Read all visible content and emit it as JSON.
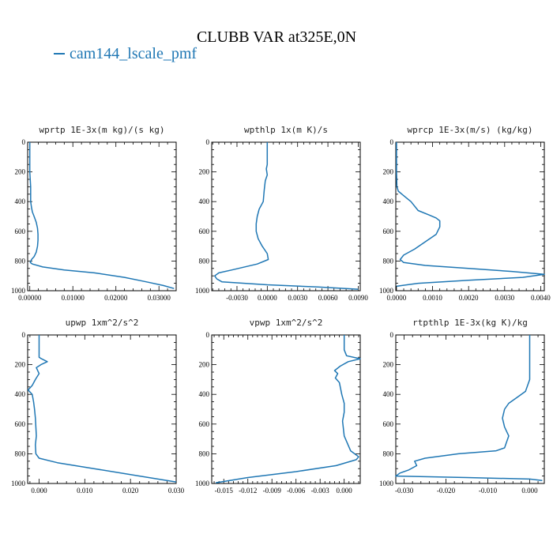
{
  "figure": {
    "title": "CLUBB VAR at325E,0N",
    "legend": {
      "label": "cam144_lscale_pmf",
      "color": "#1f77b4"
    }
  },
  "chart_data": [
    {
      "type": "line",
      "title": "wprtp  1E-3x(m kg)/(s kg)",
      "xlim": [
        -0.0005,
        0.034
      ],
      "ylim": [
        1000,
        0
      ],
      "xticks": [
        0,
        0.01,
        0.02,
        0.03
      ],
      "xtick_labels": [
        "0.00000",
        "0.01000",
        "0.02000",
        "0.03000"
      ],
      "yticks": [
        0,
        200,
        400,
        600,
        800,
        1000
      ],
      "series": [
        {
          "x": [
            0.0,
            0.0,
            0.0002,
            0.0002,
            0.0004,
            0.0006,
            0.001,
            0.0015,
            0.0018,
            0.0019,
            0.0019,
            0.0018,
            0.0015,
            0.001,
            0.0004,
            0.0001,
            0.0006,
            0.003,
            0.008,
            0.015,
            0.022,
            0.027,
            0.031,
            0.0335
          ],
          "y": [
            0,
            200,
            300,
            400,
            440,
            470,
            500,
            540,
            580,
            620,
            660,
            700,
            740,
            770,
            790,
            810,
            820,
            840,
            860,
            880,
            910,
            940,
            965,
            985
          ]
        }
      ]
    },
    {
      "type": "line",
      "title": "wpthlp  1x(m K)/s",
      "xlim": [
        -0.0055,
        0.0092
      ],
      "ylim": [
        1000,
        0
      ],
      "xticks": [
        -0.003,
        0,
        0.003,
        0.006,
        0.009
      ],
      "xtick_labels": [
        "-0.0030",
        "0.0000",
        "0.0030",
        "0.0060",
        "0.0090"
      ],
      "yticks": [
        0,
        200,
        400,
        600,
        800,
        1000
      ],
      "series": [
        {
          "x": [
            0.0,
            0.0,
            0.0,
            -0.0001,
            0.0,
            -0.0002,
            -0.0003,
            -0.0004,
            -0.0008,
            -0.001,
            -0.0011,
            -0.0011,
            -0.0009,
            -0.0005,
            0.0,
            0.0001,
            -0.001,
            -0.0035,
            -0.0048,
            -0.0052,
            -0.005,
            -0.0045,
            0.0,
            0.005,
            0.009
          ],
          "y": [
            0,
            100,
            150,
            180,
            220,
            260,
            320,
            400,
            450,
            500,
            550,
            600,
            650,
            700,
            750,
            790,
            820,
            860,
            880,
            900,
            920,
            940,
            960,
            975,
            990
          ]
        }
      ]
    },
    {
      "type": "line",
      "title": "wprcp  1E-3x(m/s) (kg/kg)",
      "xlim": [
        -2e-05,
        0.0041
      ],
      "ylim": [
        1000,
        0
      ],
      "xticks": [
        0,
        0.001,
        0.002,
        0.003,
        0.004
      ],
      "xtick_labels": [
        "0.0000",
        "0.0010",
        "0.0020",
        "0.0030",
        "0.0040"
      ],
      "yticks": [
        0,
        200,
        400,
        600,
        800,
        1000
      ],
      "series": [
        {
          "x": [
            0.0,
            0.0,
            1e-05,
            5e-05,
            0.0002,
            0.0004,
            0.0006,
            0.0009,
            0.0011,
            0.0012,
            0.0012,
            0.0011,
            0.0008,
            0.0005,
            0.0002,
            0.0001,
            0.0002,
            0.0008,
            0.002,
            0.0032,
            0.0041,
            0.0035,
            0.002,
            0.0006,
            0.0
          ],
          "y": [
            0,
            200,
            300,
            330,
            360,
            400,
            460,
            490,
            510,
            530,
            570,
            620,
            670,
            720,
            760,
            790,
            810,
            830,
            850,
            870,
            890,
            910,
            930,
            950,
            970
          ]
        }
      ]
    },
    {
      "type": "line",
      "title": "upwp  1xm^2/s^2",
      "xlim": [
        -0.0025,
        0.03
      ],
      "ylim": [
        1000,
        0
      ],
      "xticks": [
        0,
        0.01,
        0.02,
        0.03
      ],
      "xtick_labels": [
        "0.000",
        "0.010",
        "0.020",
        "0.030"
      ],
      "yticks": [
        0,
        200,
        400,
        600,
        800,
        1000
      ],
      "series": [
        {
          "x": [
            0.0,
            0.0,
            0.0,
            0.0005,
            0.0018,
            0.0004,
            -0.0006,
            0.0,
            -0.0008,
            -0.0015,
            -0.0024,
            -0.0015,
            -0.0012,
            -0.001,
            -0.0008,
            -0.0007,
            -0.0006,
            -0.0008,
            -0.0007,
            0.0,
            0.004,
            0.012,
            0.022,
            0.03
          ],
          "y": [
            0,
            100,
            150,
            160,
            180,
            200,
            220,
            260,
            300,
            340,
            370,
            400,
            450,
            500,
            560,
            620,
            680,
            740,
            800,
            830,
            860,
            900,
            950,
            990
          ]
        }
      ]
    },
    {
      "type": "line",
      "title": "vpwp  1xm^2/s^2",
      "xlim": [
        -0.0165,
        0.002
      ],
      "ylim": [
        1000,
        0
      ],
      "xticks": [
        -0.015,
        -0.012,
        -0.009,
        -0.006,
        -0.003,
        0
      ],
      "xtick_labels": [
        "-0.015",
        "-0.012",
        "-0.009",
        "-0.006",
        "-0.003",
        "0.000"
      ],
      "yticks": [
        0,
        200,
        400,
        600,
        800,
        1000
      ],
      "series": [
        {
          "x": [
            0.0,
            0.0,
            0.0003,
            0.002,
            0.0005,
            -0.0005,
            -0.0012,
            -0.0008,
            -0.0011,
            -0.0006,
            -0.0003,
            0.0,
            0.0,
            -0.0002,
            0.0,
            0.0008,
            0.0018,
            0.0015,
            -0.001,
            -0.006,
            -0.012,
            -0.016
          ],
          "y": [
            0,
            100,
            140,
            160,
            180,
            210,
            240,
            260,
            290,
            320,
            400,
            460,
            520,
            580,
            680,
            780,
            820,
            840,
            880,
            920,
            960,
            995
          ]
        }
      ]
    },
    {
      "type": "line",
      "title": "rtpthlp  1E-3x(kg K)/kg",
      "xlim": [
        -0.032,
        0.0035
      ],
      "ylim": [
        1000,
        0
      ],
      "xticks": [
        -0.03,
        -0.02,
        -0.01,
        0
      ],
      "xtick_labels": [
        "-0.030",
        "-0.020",
        "-0.010",
        "0.000"
      ],
      "yticks": [
        0,
        200,
        400,
        600,
        800,
        1000
      ],
      "series": [
        {
          "x": [
            0.0,
            0.0,
            0.0,
            -0.001,
            -0.003,
            -0.005,
            -0.006,
            -0.0065,
            -0.006,
            -0.005,
            -0.0055,
            -0.006,
            -0.008,
            -0.017,
            -0.025,
            -0.0275,
            -0.027,
            -0.029,
            -0.031,
            -0.032,
            -0.015,
            0.0,
            0.003
          ],
          "y": [
            0,
            100,
            300,
            380,
            420,
            460,
            500,
            560,
            620,
            680,
            720,
            760,
            780,
            800,
            830,
            850,
            880,
            910,
            930,
            950,
            960,
            970,
            980
          ]
        }
      ]
    }
  ]
}
